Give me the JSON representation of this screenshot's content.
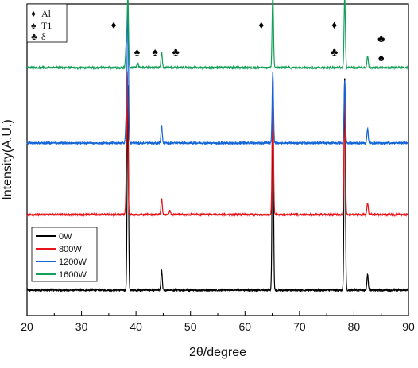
{
  "chart_data": {
    "type": "line",
    "xlabel": "2θ/degree",
    "ylabel": "Intensity(A.U.)",
    "xlim": [
      20,
      90
    ],
    "x_ticks": [
      "20",
      "30",
      "40",
      "50",
      "60",
      "70",
      "80",
      "90"
    ],
    "grid": false,
    "legend_position": "bottom-left",
    "y_offsets_units": {
      "0W": 0,
      "800W": 95,
      "1200W": 185,
      "1600W": 280
    },
    "series": [
      {
        "name": "0W",
        "color": "#000000",
        "peaks": [
          {
            "x": 38.5,
            "height": 260
          },
          {
            "x": 44.7,
            "height": 25
          },
          {
            "x": 65.1,
            "height": 270
          },
          {
            "x": 78.3,
            "height": 270
          },
          {
            "x": 82.5,
            "height": 20
          }
        ]
      },
      {
        "name": "800W",
        "color": "#e8141b",
        "peaks": [
          {
            "x": 38.4,
            "height": 175
          },
          {
            "x": 38.2,
            "height": 18
          },
          {
            "x": 44.7,
            "height": 20
          },
          {
            "x": 46.2,
            "height": 5
          },
          {
            "x": 65.1,
            "height": 175
          },
          {
            "x": 78.3,
            "height": 170
          },
          {
            "x": 82.5,
            "height": 15
          }
        ]
      },
      {
        "name": "1200W",
        "color": "#1565d8",
        "peaks": [
          {
            "x": 38.5,
            "height": 180
          },
          {
            "x": 38.2,
            "height": 30
          },
          {
            "x": 44.7,
            "height": 22
          },
          {
            "x": 65.1,
            "height": 90
          },
          {
            "x": 78.3,
            "height": 80
          },
          {
            "x": 82.5,
            "height": 18
          }
        ]
      },
      {
        "name": "1600W",
        "color": "#15a05a",
        "peaks": [
          {
            "x": 38.5,
            "height": 90
          },
          {
            "x": 38.2,
            "height": 28
          },
          {
            "x": 40.3,
            "height": 6
          },
          {
            "x": 44.7,
            "height": 20
          },
          {
            "x": 65.1,
            "height": 95
          },
          {
            "x": 78.3,
            "height": 90
          },
          {
            "x": 82.5,
            "height": 15
          }
        ]
      }
    ],
    "phase_legend": [
      {
        "symbol": "♦",
        "label": "Al"
      },
      {
        "symbol": "♠",
        "label": "T1"
      },
      {
        "symbol": "♣",
        "label": "δ"
      }
    ],
    "annotations": [
      {
        "symbol": "♦",
        "x": 35.9,
        "level": 0
      },
      {
        "symbol": "♠",
        "x": 40.2,
        "level": 1
      },
      {
        "symbol": "♠",
        "x": 43.5,
        "level": 1
      },
      {
        "symbol": "♣",
        "x": 47.3,
        "level": 1
      },
      {
        "symbol": "♦",
        "x": 63.0,
        "level": 0
      },
      {
        "symbol": "♦",
        "x": 76.4,
        "level": 0
      },
      {
        "symbol": "♣",
        "x": 76.4,
        "level": 1
      },
      {
        "symbol": "♣",
        "x": 85.0,
        "level": 0.5
      },
      {
        "symbol": "♠",
        "x": 85.0,
        "level": 1.2
      }
    ]
  }
}
